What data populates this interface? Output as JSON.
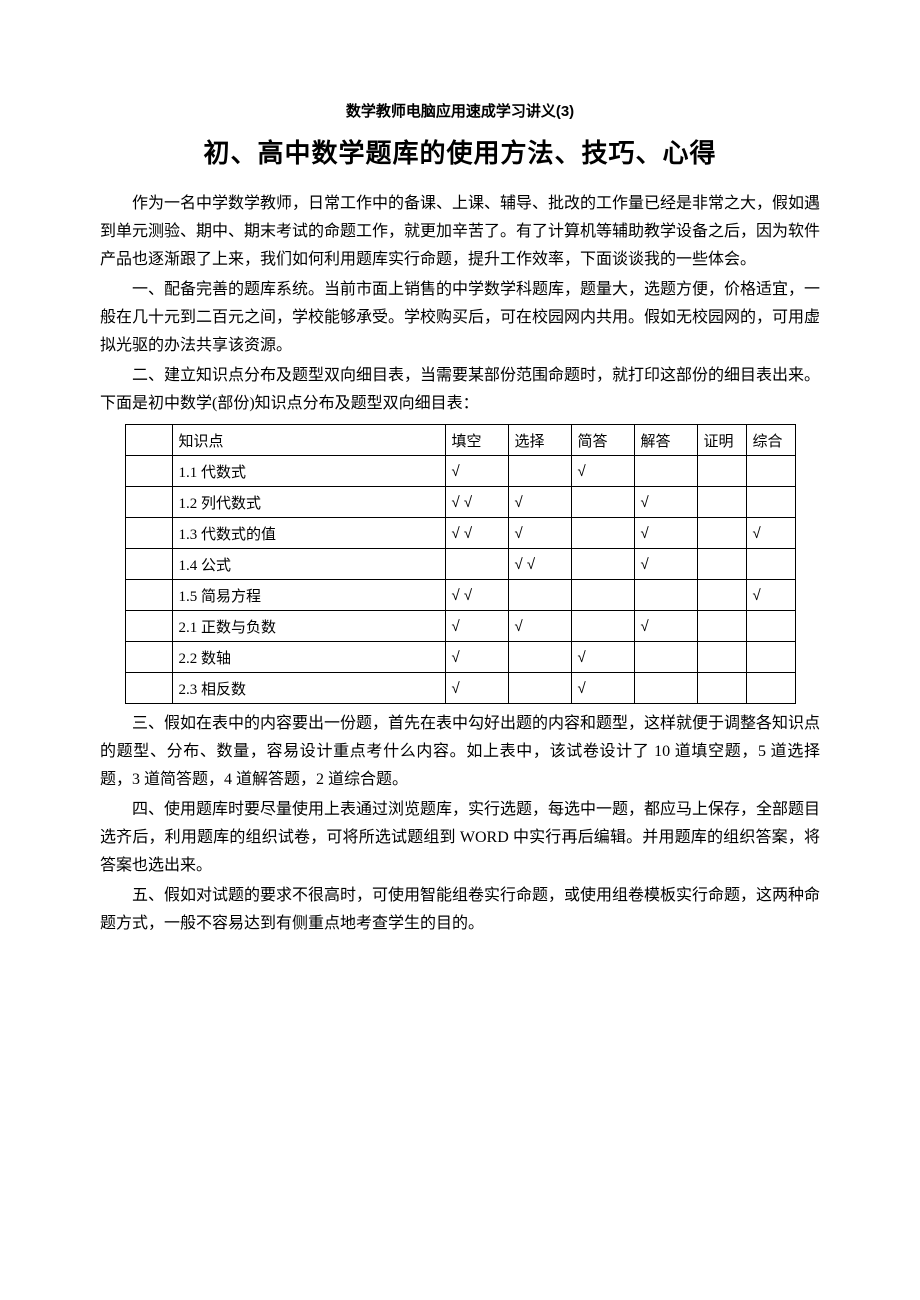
{
  "subtitle": "数学教师电脑应用速成学习讲义(3)",
  "title": "初、高中数学题库的使用方法、技巧、心得",
  "paragraphs_top": [
    "作为一名中学数学教师，日常工作中的备课、上课、辅导、批改的工作量已经是非常之大，假如遇到单元测验、期中、期末考试的命题工作，就更加辛苦了。有了计算机等辅助教学设备之后，因为软件产品也逐渐跟了上来，我们如何利用题库实行命题，提升工作效率，下面谈谈我的一些体会。",
    "一、配备完善的题库系统。当前市面上销售的中学数学科题库，题量大，选题方便，价格适宜，一般在几十元到二百元之间，学校能够承受。学校购买后，可在校园网内共用。假如无校园网的，可用虚拟光驱的办法共享该资源。",
    "二、建立知识点分布及题型双向细目表，当需要某部份范围命题时，就打印这部份的细目表出来。下面是初中数学(部份)知识点分布及题型双向细目表："
  ],
  "table": {
    "headers": [
      "知识点",
      "填空",
      "选择",
      "简答",
      "解答",
      "证明",
      "综合"
    ],
    "rows": [
      {
        "kp": "1.1 代数式",
        "cells": [
          "√",
          "",
          "√",
          "",
          "",
          ""
        ]
      },
      {
        "kp": "1.2 列代数式",
        "cells": [
          "√  √",
          "√",
          "",
          "√",
          "",
          ""
        ]
      },
      {
        "kp": "1.3 代数式的值",
        "cells": [
          "√  √",
          "√",
          "",
          "√",
          "",
          "√"
        ]
      },
      {
        "kp": "1.4 公式",
        "cells": [
          "",
          "√  √",
          "",
          "√",
          "",
          ""
        ]
      },
      {
        "kp": "1.5 简易方程",
        "cells": [
          "√  √",
          "",
          "",
          "",
          "",
          "√"
        ]
      },
      {
        "kp": "2.1 正数与负数",
        "cells": [
          "√",
          "√",
          "",
          "√",
          "",
          ""
        ]
      },
      {
        "kp": "2.2  数轴",
        "cells": [
          "√",
          "",
          "√",
          "",
          "",
          ""
        ]
      },
      {
        "kp": "2.3 相反数",
        "cells": [
          "√",
          "",
          "√",
          "",
          "",
          ""
        ]
      }
    ]
  },
  "paragraphs_bottom": [
    "三、假如在表中的内容要出一份题，首先在表中勾好出题的内容和题型，这样就便于调整各知识点的题型、分布、数量，容易设计重点考什么内容。如上表中，该试卷设计了 10 道填空题，5 道选择题，3 道简答题，4 道解答题，2 道综合题。",
    "四、使用题库时要尽量使用上表通过浏览题库，实行选题，每选中一题，都应马上保存，全部题目选齐后，利用题库的组织试卷，可将所选试题组到 WORD 中实行再后编辑。并用题库的组织答案，将答案也选出来。",
    "五、假如对试题的要求不很高时，可使用智能组卷实行命题，或使用组卷模板实行命题，这两种命题方式，一般不容易达到有侧重点地考查学生的目的。"
  ]
}
